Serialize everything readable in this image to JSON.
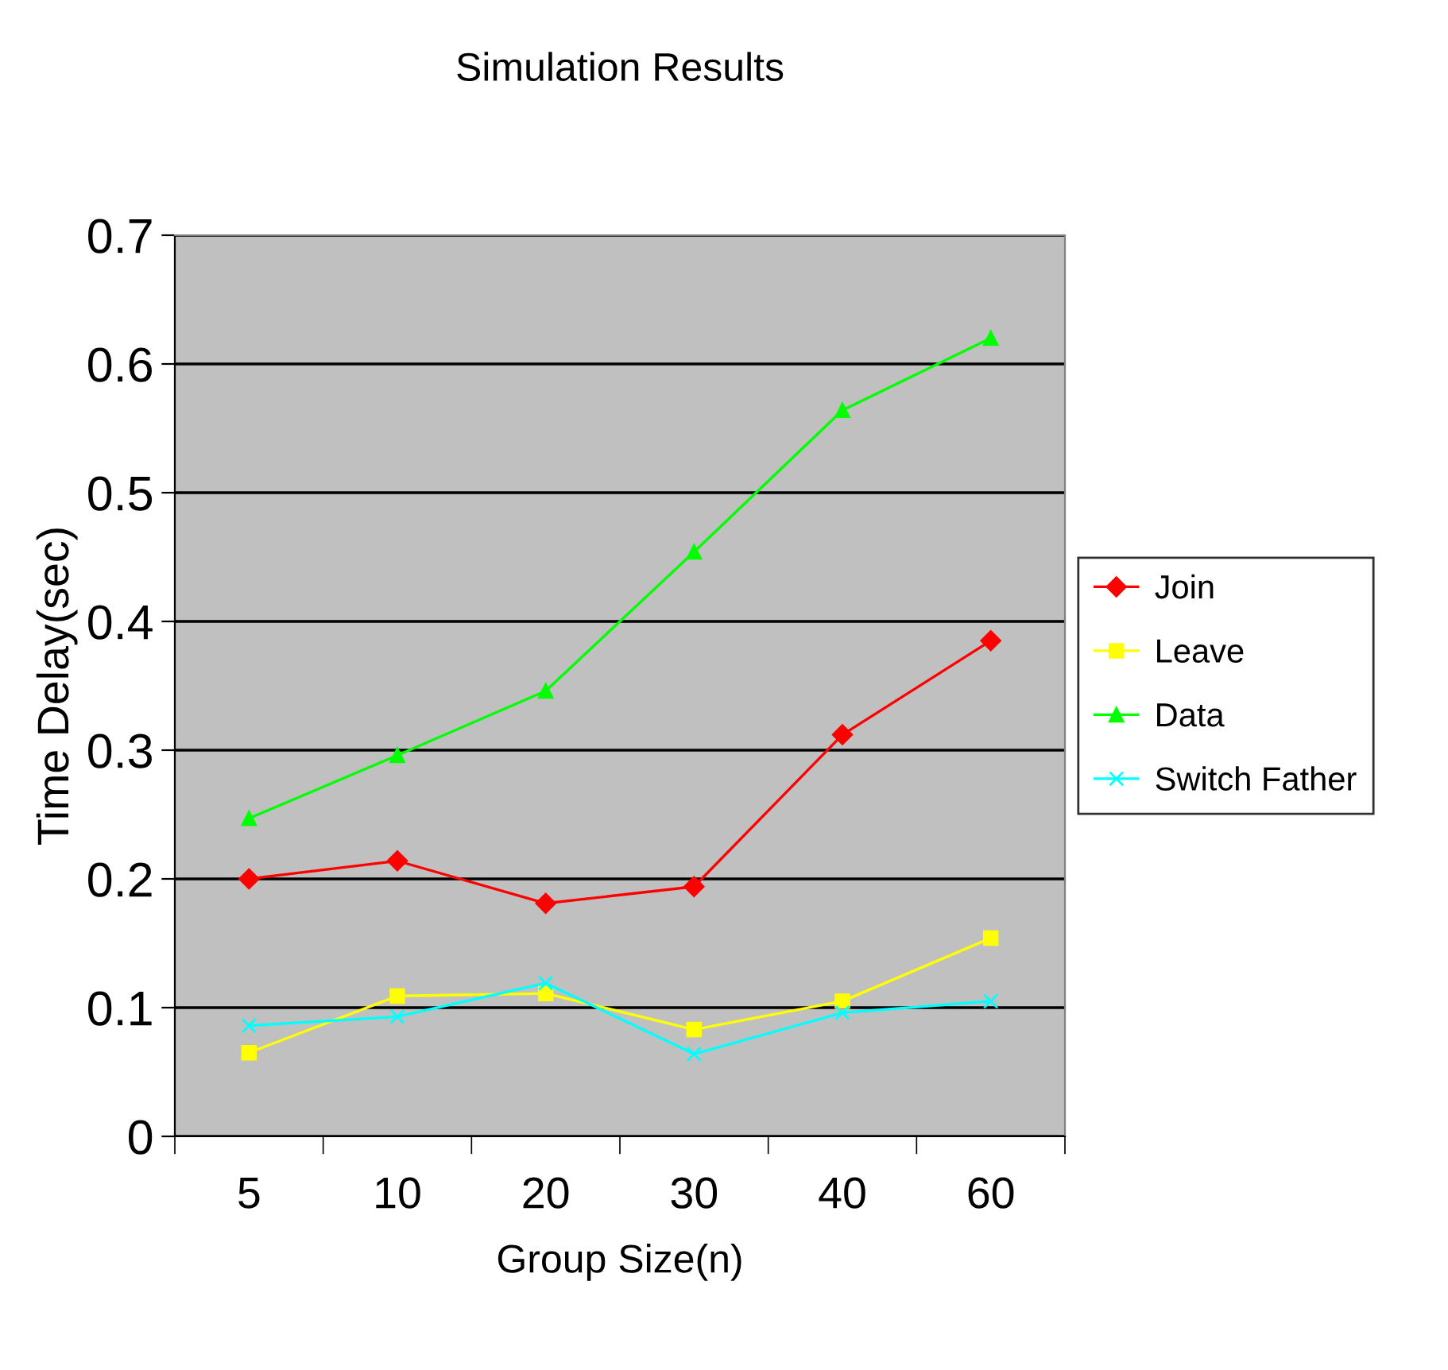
{
  "chart_data": {
    "type": "line",
    "title": "Simulation Results",
    "xlabel": "Group Size(n)",
    "ylabel": "Time Delay(sec)",
    "categories": [
      "5",
      "10",
      "20",
      "30",
      "40",
      "60"
    ],
    "series": [
      {
        "name": "Join",
        "color": "#ff0000",
        "marker": "diamond",
        "values": [
          0.2,
          0.214,
          0.181,
          0.194,
          0.312,
          0.385
        ]
      },
      {
        "name": "Leave",
        "color": "#ffff00",
        "marker": "square",
        "values": [
          0.065,
          0.109,
          0.111,
          0.083,
          0.105,
          0.154
        ]
      },
      {
        "name": "Data",
        "color": "#00ff00",
        "marker": "triangle",
        "values": [
          0.247,
          0.296,
          0.346,
          0.454,
          0.564,
          0.62
        ]
      },
      {
        "name": "Switch Father",
        "color": "#00ffff",
        "marker": "cross",
        "values": [
          0.086,
          0.093,
          0.119,
          0.064,
          0.096,
          0.105
        ]
      }
    ],
    "ylim": [
      0,
      0.7
    ],
    "yticks": [
      0,
      0.1,
      0.2,
      0.3,
      0.4,
      0.5,
      0.6,
      0.7
    ],
    "grid": "y",
    "legend": "right"
  }
}
